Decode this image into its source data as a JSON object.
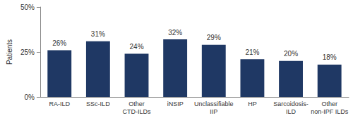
{
  "chart_data": {
    "type": "bar",
    "y_label": "Patients",
    "categories": [
      "RA-ILD",
      "SSc-ILD",
      "Other\nCTD-ILDs",
      "iNSIP",
      "Unclassifiable\nIIP",
      "HP",
      "Sarcoidosis-\nILD",
      "Other\nnon-IPF ILDs"
    ],
    "values": [
      26,
      31,
      24,
      32,
      29,
      21,
      20,
      18
    ],
    "value_labels": [
      "26%",
      "31%",
      "24%",
      "32%",
      "29%",
      "21%",
      "20%",
      "18%"
    ],
    "color": "#1f3864",
    "ylim": [
      0,
      50
    ],
    "yticks": [
      {
        "value": 0,
        "label": "0%"
      },
      {
        "value": 25,
        "label": "25%"
      },
      {
        "value": 50,
        "label": "50%"
      }
    ],
    "grid": false,
    "data_labels": true
  }
}
